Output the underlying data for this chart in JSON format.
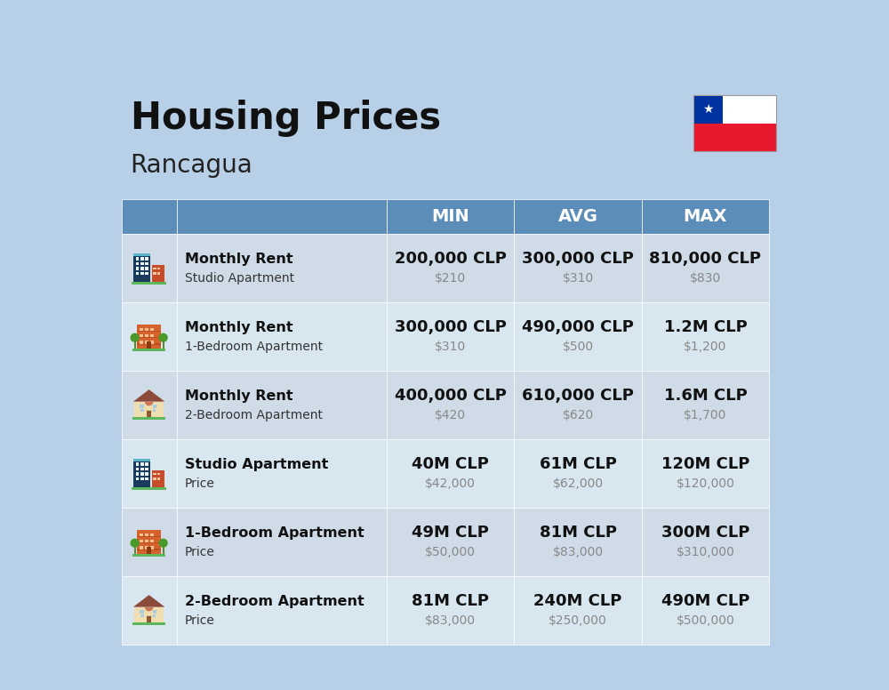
{
  "title": "Housing Prices",
  "subtitle": "Rancagua",
  "bg_color": "#b8cfe8",
  "header_bg": "#5b8db8",
  "header_text_color": "#ffffff",
  "header_labels": [
    "MIN",
    "AVG",
    "MAX"
  ],
  "row_bg_even": "#cfdce8",
  "row_bg_odd": "#d8e6f0",
  "rows": [
    {
      "icon_type": "blue_office",
      "label_bold": "Monthly Rent",
      "label_normal": "Studio Apartment",
      "min_main": "200,000 CLP",
      "min_sub": "$210",
      "avg_main": "300,000 CLP",
      "avg_sub": "$310",
      "max_main": "810,000 CLP",
      "max_sub": "$830"
    },
    {
      "icon_type": "orange_apartment",
      "label_bold": "Monthly Rent",
      "label_normal": "1-Bedroom Apartment",
      "min_main": "300,000 CLP",
      "min_sub": "$310",
      "avg_main": "490,000 CLP",
      "avg_sub": "$500",
      "max_main": "1.2M CLP",
      "max_sub": "$1,200"
    },
    {
      "icon_type": "tan_house",
      "label_bold": "Monthly Rent",
      "label_normal": "2-Bedroom Apartment",
      "min_main": "400,000 CLP",
      "min_sub": "$420",
      "avg_main": "610,000 CLP",
      "avg_sub": "$620",
      "max_main": "1.6M CLP",
      "max_sub": "$1,700"
    },
    {
      "icon_type": "blue_office",
      "label_bold": "Studio Apartment",
      "label_normal": "Price",
      "min_main": "40M CLP",
      "min_sub": "$42,000",
      "avg_main": "61M CLP",
      "avg_sub": "$62,000",
      "max_main": "120M CLP",
      "max_sub": "$120,000"
    },
    {
      "icon_type": "orange_apartment",
      "label_bold": "1-Bedroom Apartment",
      "label_normal": "Price",
      "min_main": "49M CLP",
      "min_sub": "$50,000",
      "avg_main": "81M CLP",
      "avg_sub": "$83,000",
      "max_main": "300M CLP",
      "max_sub": "$310,000"
    },
    {
      "icon_type": "tan_house",
      "label_bold": "2-Bedroom Apartment",
      "label_normal": "Price",
      "min_main": "81M CLP",
      "min_sub": "$83,000",
      "avg_main": "240M CLP",
      "avg_sub": "$250,000",
      "max_main": "490M CLP",
      "max_sub": "$500,000"
    }
  ]
}
